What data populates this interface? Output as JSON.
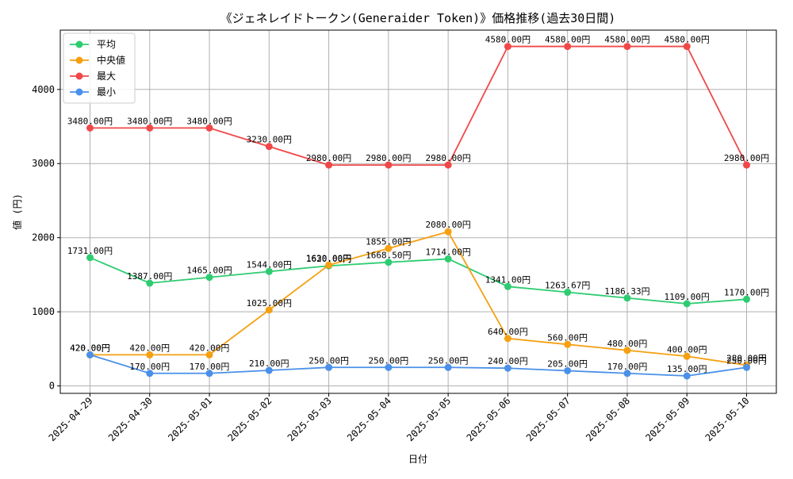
{
  "chart_data": {
    "type": "line",
    "title": "《ジェネレイドトークン(Generaider Token)》価格推移(過去30日間)",
    "xlabel": "日付",
    "ylabel": "値 (円)",
    "x": [
      "2025-04-29",
      "2025-04-30",
      "2025-05-01",
      "2025-05-02",
      "2025-05-03",
      "2025-05-04",
      "2025-05-05",
      "2025-05-06",
      "2025-05-07",
      "2025-05-08",
      "2025-05-09",
      "2025-05-10"
    ],
    "ylim": [
      -100,
      4800
    ],
    "yticks": [
      0,
      1000,
      2000,
      3000,
      4000
    ],
    "grid": true,
    "legend_position": "top-left",
    "label_suffix": "円",
    "series": [
      {
        "name": "平均",
        "color": "#2ecc71",
        "values": [
          1731,
          1387,
          1465,
          1544,
          1620,
          1668.5,
          1714,
          1341,
          1263.67,
          1186.33,
          1109,
          1170
        ],
        "labels": [
          "1731.00円",
          "1387.00円",
          "1465.00円",
          "1544.00円",
          "1620.00円",
          "1668.50円",
          "1714.00円",
          "1341.00円",
          "1263.67円",
          "1186.33円",
          "1109.00円",
          "1170.00円"
        ]
      },
      {
        "name": "中央値",
        "color": "#f5a011",
        "values": [
          420,
          420,
          420,
          1025,
          1630,
          1855,
          2080,
          640,
          560,
          480,
          400,
          280
        ],
        "labels": [
          "420.00円",
          "420.00円",
          "420.00円",
          "1025.00円",
          "1630.00円",
          "1855.00円",
          "2080.00円",
          "640.00円",
          "560.00円",
          "480.00円",
          "400.00円",
          "280.00円"
        ]
      },
      {
        "name": "最大",
        "color": "#f04848",
        "values": [
          3480,
          3480,
          3480,
          3230,
          2980,
          2980,
          2980,
          4580,
          4580,
          4580,
          4580,
          2980
        ],
        "labels": [
          "3480.00円",
          "3480.00円",
          "3480.00円",
          "3230.00円",
          "2980.00円",
          "2980.00円",
          "2980.00円",
          "4580.00円",
          "4580.00円",
          "4580.00円",
          "4580.00円",
          "2980.00円"
        ]
      },
      {
        "name": "最小",
        "color": "#4a90e8",
        "values": [
          420,
          170,
          170,
          210,
          250,
          250,
          250,
          240,
          205,
          170,
          135,
          250
        ],
        "labels": [
          "420.00円",
          "170.00円",
          "170.00円",
          "210.00円",
          "250.00円",
          "250.00円",
          "250.00円",
          "240.00円",
          "205.00円",
          "170.00円",
          "135.00円",
          "250.00円"
        ]
      }
    ]
  }
}
